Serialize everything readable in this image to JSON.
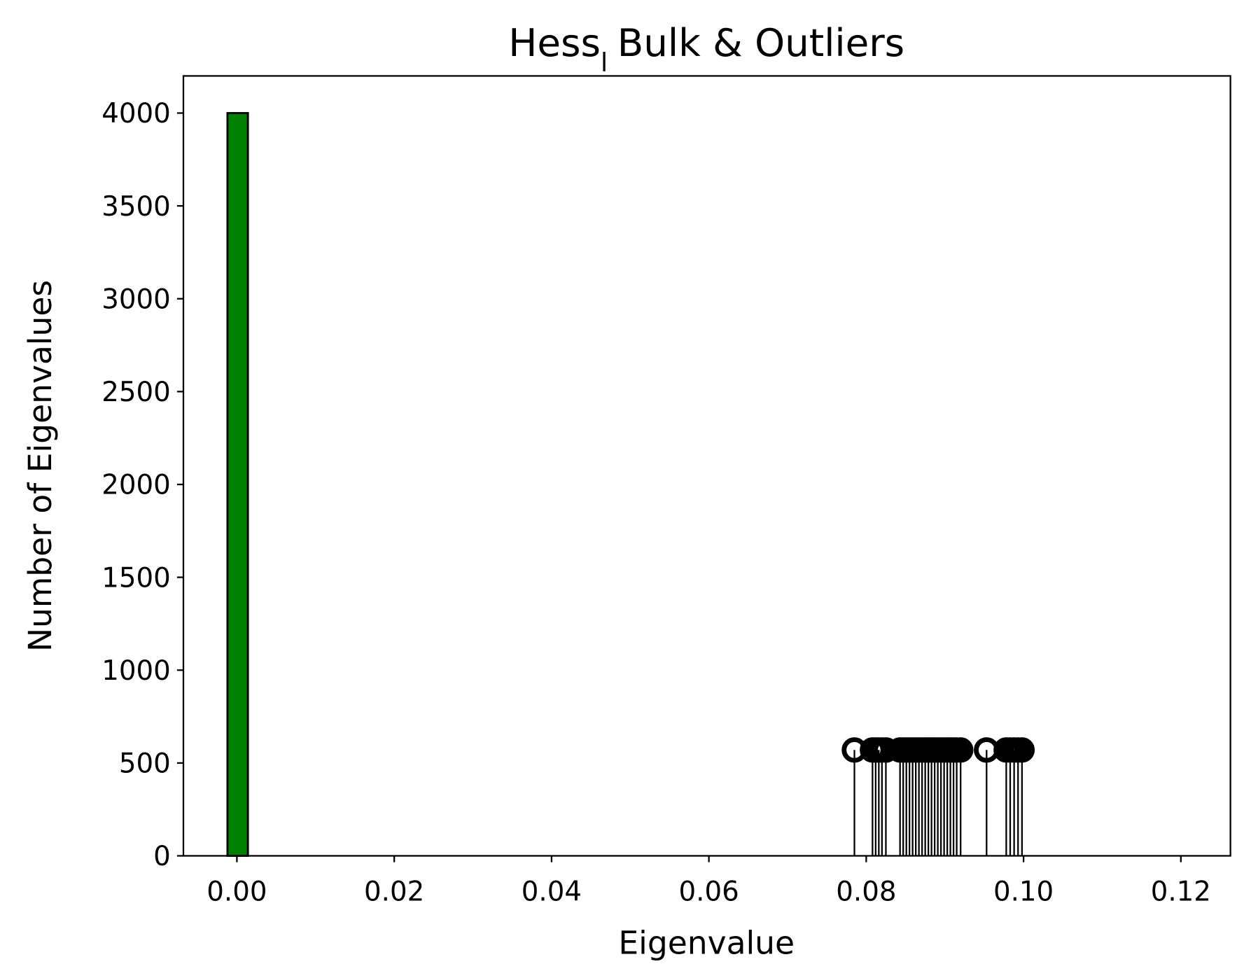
{
  "chart_data": {
    "type": "histogram",
    "title_parts": [
      "Hess",
      "l",
      "Bulk & Outliers"
    ],
    "xlabel": "Eigenvalue",
    "ylabel": "Number of Eigenvalues",
    "bins": [
      -0.0012,
      0.0014,
      0.12
    ],
    "counts": [
      4000,
      0
    ],
    "color": "#008000",
    "stems": {
      "color": "#000000",
      "x": [
        0.0785,
        0.0808,
        0.0812,
        0.0816,
        0.082,
        0.0825,
        0.0843,
        0.0847,
        0.0851,
        0.0855,
        0.0859,
        0.0863,
        0.0867,
        0.0871,
        0.0875,
        0.0879,
        0.0883,
        0.0887,
        0.0891,
        0.0895,
        0.0899,
        0.0903,
        0.0907,
        0.0911,
        0.0915,
        0.092,
        0.0953,
        0.0978,
        0.0983,
        0.0988,
        0.0993,
        0.0998
      ],
      "values": [
        570,
        570,
        570,
        570,
        570,
        570,
        570,
        570,
        570,
        570,
        570,
        570,
        570,
        570,
        570,
        570,
        570,
        570,
        570,
        570,
        570,
        570,
        570,
        570,
        570,
        570,
        570,
        570,
        570,
        570,
        570,
        570
      ]
    },
    "xlim": [
      -0.0068,
      0.1263
    ],
    "ylim": [
      0,
      4200
    ],
    "xticks": [
      {
        "value": 0,
        "label": "0.00"
      },
      {
        "value": 0.02,
        "label": "0.02"
      },
      {
        "value": 0.04,
        "label": "0.04"
      },
      {
        "value": 0.06,
        "label": "0.06"
      },
      {
        "value": 0.08,
        "label": "0.08"
      },
      {
        "value": 0.1,
        "label": "0.10"
      },
      {
        "value": 0.12,
        "label": "0.12"
      }
    ],
    "yticks": [
      0,
      500,
      1000,
      1500,
      2000,
      2500,
      3000,
      3500,
      4000
    ]
  }
}
